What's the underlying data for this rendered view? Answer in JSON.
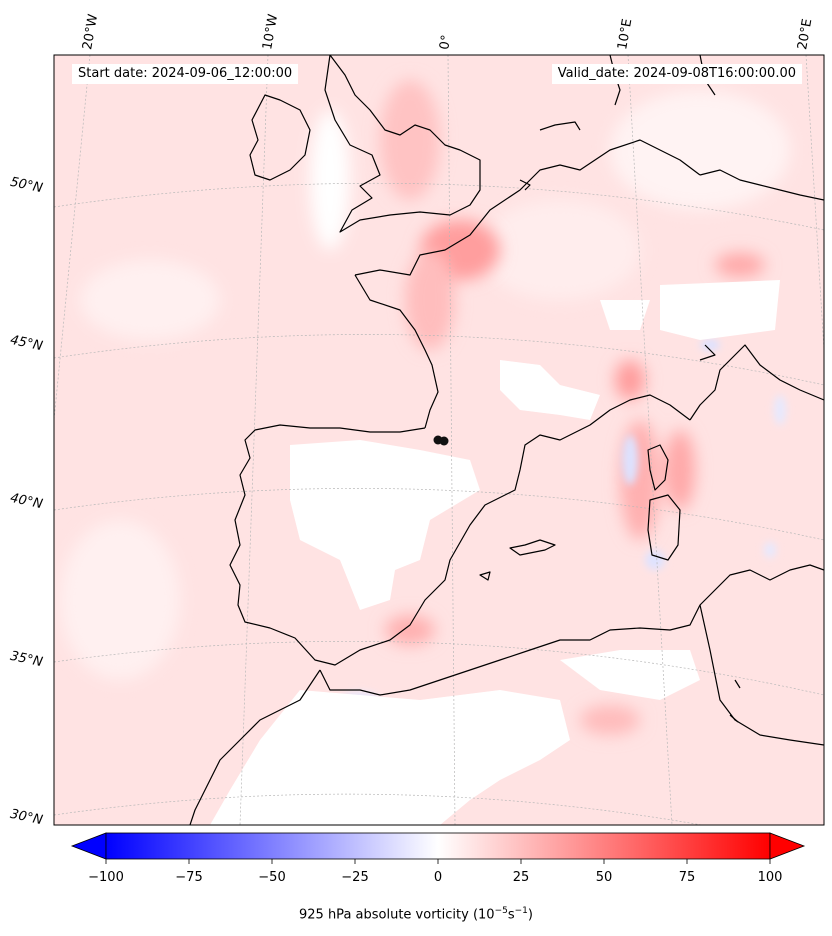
{
  "header": {
    "start_date": "Start date: 2024-09-06_12:00:00",
    "valid_date": "Valid_date: 2024-09-08T16:00:00.00"
  },
  "lon_labels": [
    "20°W",
    "10°W",
    "0°",
    "10°E",
    "20°E"
  ],
  "lat_labels": [
    "50°N",
    "45°N",
    "40°N",
    "35°N",
    "30°N"
  ],
  "colorbar": {
    "ticks": [
      "−100",
      "−75",
      "−50",
      "−25",
      "0",
      "25",
      "50",
      "75",
      "100"
    ],
    "min": -100,
    "max": 100,
    "label": "925 hPa absolute vorticity (10",
    "label_sup1": "−5",
    "label_mid": "s",
    "label_sup2": "−1",
    "label_end": ")",
    "colors": {
      "negative": "#0000ff",
      "zero": "#ffffff",
      "positive": "#ff0000"
    }
  },
  "map_colors": {
    "background": "#ffe4e4",
    "land_outline": "#000000",
    "gridline": "#b0b0b0"
  }
}
